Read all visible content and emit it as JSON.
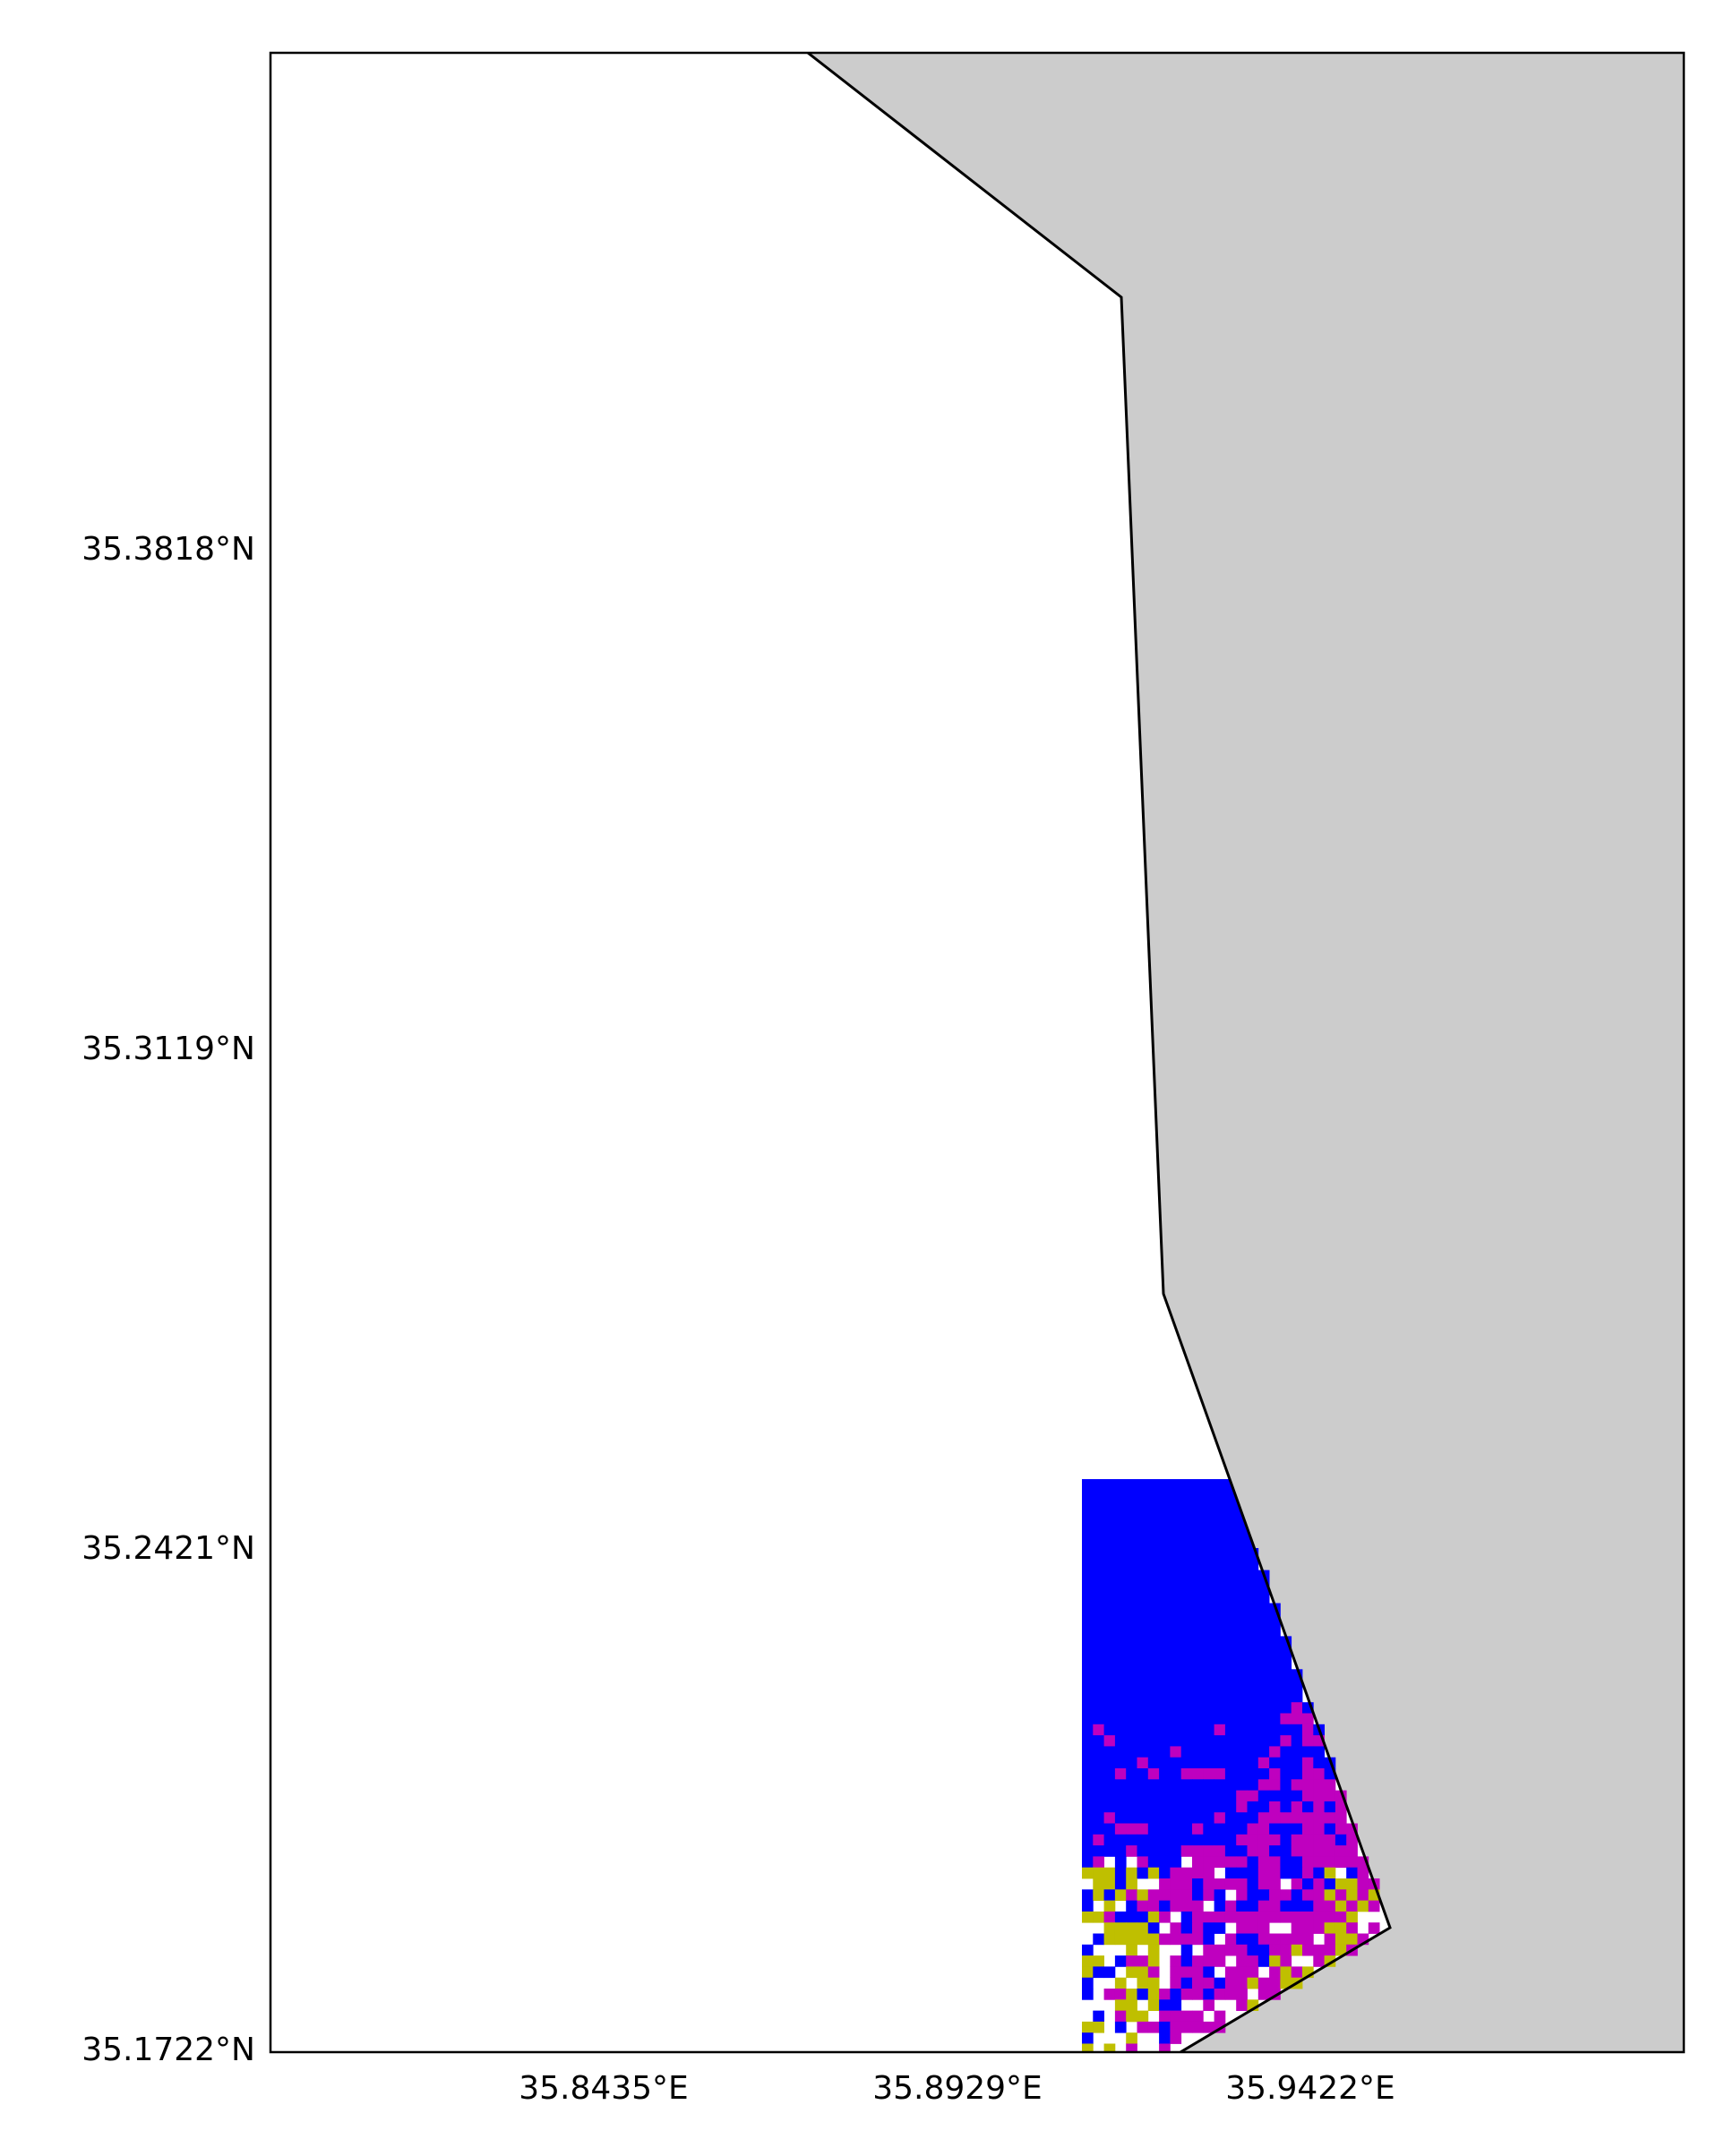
{
  "map": {
    "axes": {
      "y_ticks": [
        {
          "label": "35.3818°N",
          "lat": 35.3818
        },
        {
          "label": "35.3119°N",
          "lat": 35.3119
        },
        {
          "label": "35.2421°N",
          "lat": 35.2421
        },
        {
          "label": "35.1722°N",
          "lat": 35.1722
        }
      ],
      "x_ticks": [
        {
          "label": "35.8435°E",
          "lon": 35.8435
        },
        {
          "label": "35.8929°E",
          "lon": 35.8929
        },
        {
          "label": "35.9422°E",
          "lon": 35.9422
        }
      ]
    },
    "colors": {
      "land": "#cccccc",
      "water": "#ffffff",
      "coastline": "#000000",
      "class_blue": "#0000ff",
      "class_magenta": "#bf00bf",
      "class_yellow": "#bfbf00"
    },
    "classes": [
      "class_blue",
      "class_magenta",
      "class_yellow"
    ],
    "features": {
      "land": "land-area",
      "coastline": "coastline",
      "raster": "classified-raster"
    }
  }
}
